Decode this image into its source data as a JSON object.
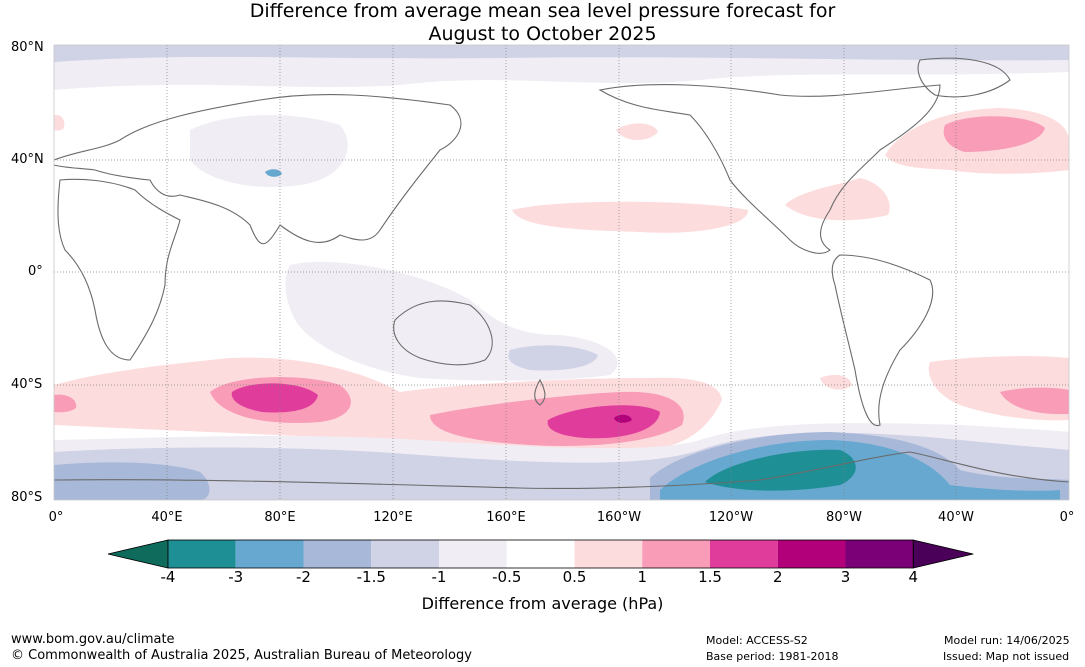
{
  "title": {
    "line1": "Difference from average mean sea level pressure forecast for",
    "line2": "August to October 2025"
  },
  "latitude_labels": [
    "80°N",
    "40°N",
    "0°",
    "40°S",
    "80°S"
  ],
  "longitude_labels": [
    "0°",
    "40°E",
    "80°E",
    "120°E",
    "160°E",
    "160°W",
    "120°W",
    "80°W",
    "40°W",
    "0°"
  ],
  "colorbar": {
    "ticks": [
      "-4",
      "-3",
      "-2",
      "-1.5",
      "-1",
      "-0.5",
      "0.5",
      "1",
      "1.5",
      "2",
      "3",
      "4"
    ],
    "colors": [
      "#0f6b5c",
      "#1f8f96",
      "#66a8d0",
      "#a7b8d8",
      "#d0d2e6",
      "#f1edf4",
      "#ffffff",
      "#fddcde",
      "#f89cb8",
      "#e03c9c",
      "#b10079",
      "#7b0077",
      "#4a0058"
    ],
    "title": "Difference from average (hPa)"
  },
  "footer": {
    "url": "www.bom.gov.au/climate",
    "copyright": "© Commonwealth of Australia 2025, Australian Bureau of Meteorology",
    "model": "Model: ACCESS-S2",
    "base_period": "Base period: 1981-2018",
    "model_run": "Model run: 14/06/2025",
    "issued": "Issued: Map not issued"
  }
}
